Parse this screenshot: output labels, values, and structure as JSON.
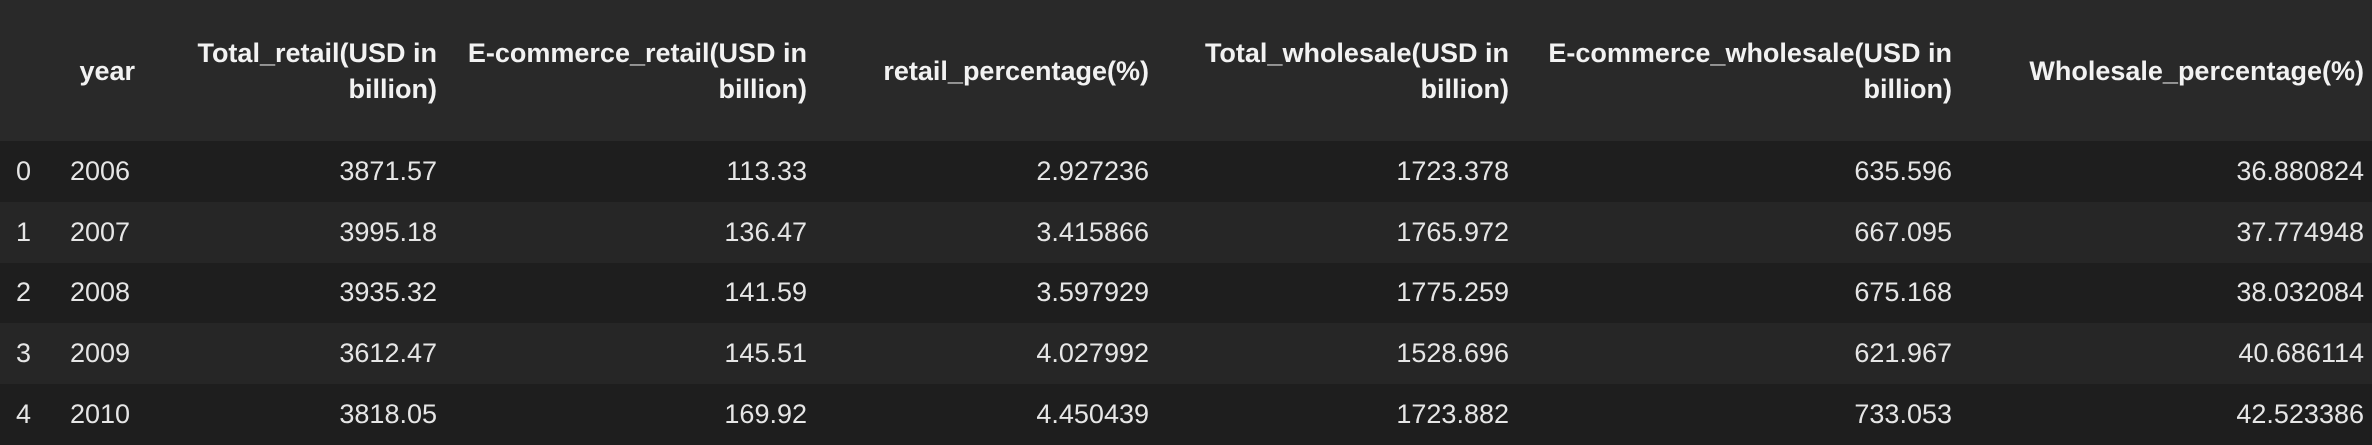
{
  "table": {
    "headers": [
      "year",
      "Total_retail(USD in billion)",
      "E-commerce_retail(USD in billion)",
      "retail_percentage(%)",
      "Total_wholesale(USD in billion)",
      "E-commerce_wholesale(USD in billion)",
      "Wholesale_percentage(%)"
    ],
    "rows": [
      {
        "index": "0",
        "cells": [
          "2006",
          "3871.57",
          "113.33",
          "2.927236",
          "1723.378",
          "635.596",
          "36.880824"
        ]
      },
      {
        "index": "1",
        "cells": [
          "2007",
          "3995.18",
          "136.47",
          "3.415866",
          "1765.972",
          "667.095",
          "37.774948"
        ]
      },
      {
        "index": "2",
        "cells": [
          "2008",
          "3935.32",
          "141.59",
          "3.597929",
          "1775.259",
          "675.168",
          "38.032084"
        ]
      },
      {
        "index": "3",
        "cells": [
          "2009",
          "3612.47",
          "145.51",
          "4.027992",
          "1528.696",
          "621.967",
          "40.686114"
        ]
      },
      {
        "index": "4",
        "cells": [
          "2010",
          "3818.05",
          "169.92",
          "4.450439",
          "1723.882",
          "733.053",
          "42.523386"
        ]
      }
    ]
  }
}
